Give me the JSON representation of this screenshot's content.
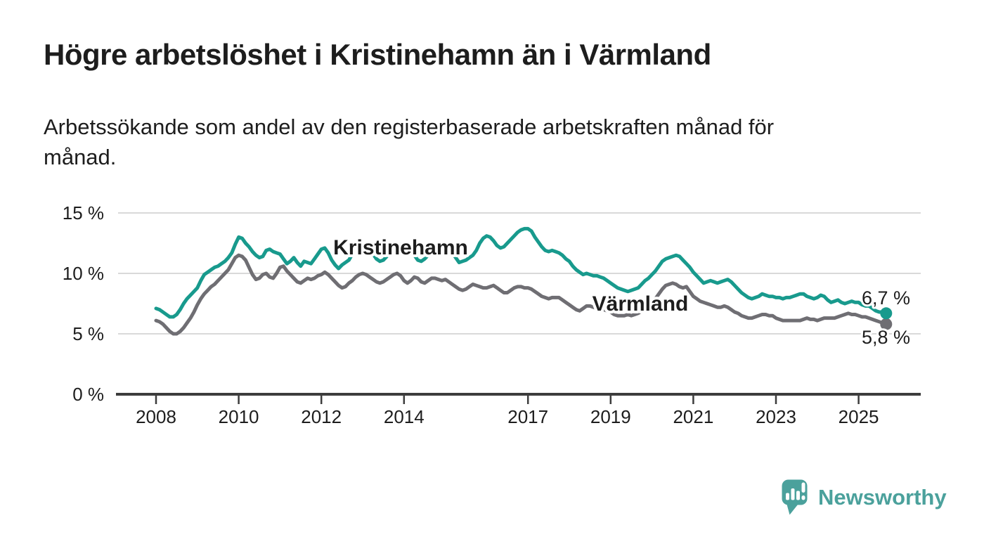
{
  "title": "Högre arbetslöshet i Kristinehamn än i Värmland",
  "subtitle": "Arbetssökande som andel av den registerbaserade arbetskraften månad för månad.",
  "branding": {
    "name": "Newsworthy",
    "color": "#4ba19c"
  },
  "style": {
    "background": "#ffffff",
    "text_color": "#1d1d1d",
    "grid_color": "#d9d9d9",
    "axis_color": "#3c3c3c"
  },
  "chart_data": {
    "type": "line",
    "unit": "%",
    "frequency": "monthly",
    "x_start": "2008-01",
    "x_end": "2025-09",
    "ylim": [
      0,
      15
    ],
    "grid": "horizontal",
    "legend_position": "inline-labels",
    "x_ticks": [
      {
        "value": 2008,
        "label": "2008"
      },
      {
        "value": 2010,
        "label": "2010"
      },
      {
        "value": 2012,
        "label": "2012"
      },
      {
        "value": 2014,
        "label": "2014"
      },
      {
        "value": 2017,
        "label": "2017"
      },
      {
        "value": 2019,
        "label": "2019"
      },
      {
        "value": 2021,
        "label": "2021"
      },
      {
        "value": 2023,
        "label": "2023"
      },
      {
        "value": 2025,
        "label": "2025"
      }
    ],
    "y_ticks": [
      {
        "value": 0,
        "label": "0 %"
      },
      {
        "value": 5,
        "label": "5 %"
      },
      {
        "value": 10,
        "label": "10 %"
      },
      {
        "value": 15,
        "label": "15 %"
      }
    ],
    "series": [
      {
        "name": "Kristinehamn",
        "color": "#189a8d",
        "end_label": "6,7 %",
        "end_value": 6.7,
        "values": [
          7.1,
          7.0,
          6.8,
          6.6,
          6.4,
          6.4,
          6.6,
          7.0,
          7.5,
          7.9,
          8.2,
          8.5,
          8.8,
          9.4,
          9.9,
          10.1,
          10.3,
          10.5,
          10.6,
          10.8,
          11.0,
          11.3,
          11.7,
          12.4,
          13.0,
          12.9,
          12.5,
          12.2,
          11.8,
          11.5,
          11.3,
          11.4,
          11.9,
          12.0,
          11.8,
          11.7,
          11.6,
          11.2,
          10.8,
          11.0,
          11.3,
          10.9,
          10.6,
          11.0,
          10.9,
          10.8,
          11.2,
          11.6,
          12.0,
          12.1,
          11.7,
          11.1,
          10.7,
          10.4,
          10.7,
          10.9,
          11.1,
          11.6,
          12.0,
          12.3,
          12.4,
          12.3,
          12.0,
          11.6,
          11.2,
          11.0,
          11.1,
          11.4,
          11.7,
          12.0,
          12.2,
          12.4,
          12.4,
          12.2,
          11.9,
          11.5,
          11.1,
          11.0,
          11.2,
          11.5,
          11.8,
          12.0,
          12.2,
          12.3,
          12.2,
          12.0,
          11.7,
          11.3,
          10.9,
          11.0,
          11.1,
          11.3,
          11.5,
          11.9,
          12.5,
          12.9,
          13.1,
          13.0,
          12.7,
          12.3,
          12.1,
          12.2,
          12.5,
          12.8,
          13.1,
          13.4,
          13.6,
          13.7,
          13.7,
          13.5,
          13.0,
          12.6,
          12.2,
          11.9,
          11.8,
          11.9,
          11.8,
          11.7,
          11.5,
          11.2,
          11.0,
          10.6,
          10.3,
          10.1,
          9.9,
          10.0,
          9.9,
          9.8,
          9.8,
          9.7,
          9.6,
          9.4,
          9.2,
          9.0,
          8.8,
          8.7,
          8.6,
          8.5,
          8.6,
          8.7,
          8.8,
          9.1,
          9.4,
          9.6,
          9.9,
          10.2,
          10.6,
          11.0,
          11.2,
          11.3,
          11.4,
          11.5,
          11.4,
          11.1,
          10.8,
          10.5,
          10.1,
          9.8,
          9.5,
          9.2,
          9.3,
          9.4,
          9.3,
          9.2,
          9.3,
          9.4,
          9.5,
          9.3,
          9.0,
          8.7,
          8.4,
          8.2,
          8.0,
          7.9,
          8.0,
          8.1,
          8.3,
          8.2,
          8.1,
          8.1,
          8.0,
          8.0,
          7.9,
          8.0,
          8.0,
          8.1,
          8.2,
          8.3,
          8.3,
          8.1,
          8.0,
          7.9,
          8.0,
          8.2,
          8.1,
          7.8,
          7.6,
          7.7,
          7.8,
          7.6,
          7.5,
          7.6,
          7.7,
          7.6,
          7.6,
          7.4,
          7.3,
          7.3,
          7.1,
          6.9,
          6.8,
          6.8,
          6.7
        ]
      },
      {
        "name": "Värmland",
        "color": "#6f6e73",
        "end_label": "5,8 %",
        "end_value": 5.8,
        "values": [
          6.1,
          6.0,
          5.8,
          5.5,
          5.2,
          5.0,
          5.0,
          5.2,
          5.5,
          5.9,
          6.3,
          6.8,
          7.4,
          7.9,
          8.3,
          8.6,
          8.9,
          9.1,
          9.4,
          9.7,
          10.0,
          10.3,
          10.8,
          11.3,
          11.5,
          11.4,
          11.1,
          10.5,
          9.9,
          9.5,
          9.6,
          9.9,
          10.0,
          9.7,
          9.6,
          10.0,
          10.5,
          10.6,
          10.2,
          9.9,
          9.6,
          9.3,
          9.2,
          9.4,
          9.6,
          9.5,
          9.6,
          9.8,
          9.9,
          10.1,
          9.9,
          9.6,
          9.3,
          9.0,
          8.8,
          8.9,
          9.2,
          9.4,
          9.7,
          9.9,
          10.0,
          9.9,
          9.7,
          9.5,
          9.3,
          9.2,
          9.3,
          9.5,
          9.7,
          9.9,
          10.0,
          9.8,
          9.4,
          9.2,
          9.4,
          9.7,
          9.6,
          9.3,
          9.2,
          9.4,
          9.6,
          9.6,
          9.5,
          9.4,
          9.5,
          9.3,
          9.1,
          8.9,
          8.7,
          8.6,
          8.7,
          8.9,
          9.1,
          9.0,
          8.9,
          8.8,
          8.8,
          8.9,
          9.0,
          8.8,
          8.6,
          8.4,
          8.4,
          8.6,
          8.8,
          8.9,
          8.9,
          8.8,
          8.8,
          8.7,
          8.5,
          8.3,
          8.1,
          8.0,
          7.9,
          8.0,
          8.0,
          8.0,
          7.8,
          7.6,
          7.4,
          7.2,
          7.0,
          6.9,
          7.1,
          7.3,
          7.3,
          7.2,
          7.1,
          7.1,
          7.0,
          6.9,
          6.8,
          6.6,
          6.5,
          6.5,
          6.5,
          6.6,
          6.5,
          6.6,
          6.7,
          6.9,
          7.1,
          7.4,
          7.7,
          7.9,
          8.3,
          8.7,
          9.0,
          9.1,
          9.2,
          9.1,
          8.9,
          8.8,
          8.9,
          8.5,
          8.1,
          7.9,
          7.7,
          7.6,
          7.5,
          7.4,
          7.3,
          7.2,
          7.2,
          7.3,
          7.2,
          7.0,
          6.8,
          6.7,
          6.5,
          6.4,
          6.3,
          6.3,
          6.4,
          6.5,
          6.6,
          6.6,
          6.5,
          6.5,
          6.3,
          6.2,
          6.1,
          6.1,
          6.1,
          6.1,
          6.1,
          6.1,
          6.2,
          6.3,
          6.2,
          6.2,
          6.1,
          6.2,
          6.3,
          6.3,
          6.3,
          6.3,
          6.4,
          6.5,
          6.6,
          6.7,
          6.6,
          6.6,
          6.5,
          6.4,
          6.4,
          6.3,
          6.2,
          6.1,
          6.0,
          5.9,
          5.8
        ]
      }
    ]
  }
}
